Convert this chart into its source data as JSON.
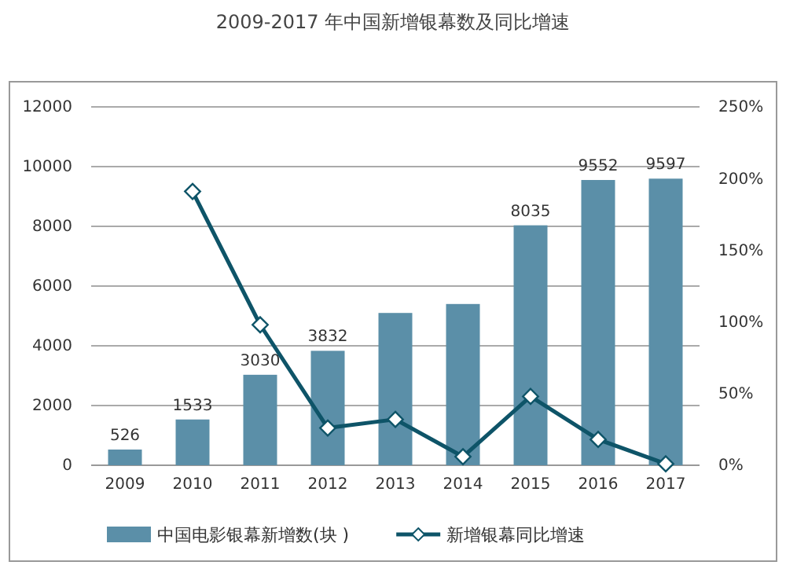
{
  "chart_data": {
    "type": "bar",
    "title": "2009-2017 年中国新增银幕数及同比增速",
    "categories": [
      "2009",
      "2010",
      "2011",
      "2012",
      "2013",
      "2014",
      "2015",
      "2016",
      "2017"
    ],
    "series": [
      {
        "name": "中国电影银幕新增数(块 )",
        "color": "#5b8fa8",
        "values": [
          526,
          1533,
          3030,
          3832,
          5100,
          5400,
          8035,
          9552,
          9597
        ],
        "value_labels": [
          "526",
          "1533",
          "3030",
          "3832",
          null,
          null,
          "8035",
          "9552",
          "9597"
        ]
      },
      {
        "name": "新增银幕同比增速",
        "type": "line",
        "axis": "y2",
        "color": "#0e5468",
        "marker": "diamond",
        "values": [
          null,
          191,
          98,
          26,
          32,
          6,
          48,
          18,
          1
        ]
      }
    ],
    "ylim": [
      0,
      12000
    ],
    "yticks": [
      0,
      2000,
      4000,
      6000,
      8000,
      10000,
      12000
    ],
    "y2lim": [
      0,
      250
    ],
    "y2ticks": [
      {
        "value": 0,
        "label": "0%"
      },
      {
        "value": 50,
        "label": "50%"
      },
      {
        "value": 100,
        "label": "100%"
      },
      {
        "value": 150,
        "label": "150%"
      },
      {
        "value": 200,
        "label": "200%"
      },
      {
        "value": 250,
        "label": "250%"
      }
    ],
    "grid": "y",
    "legend": "bottom"
  }
}
